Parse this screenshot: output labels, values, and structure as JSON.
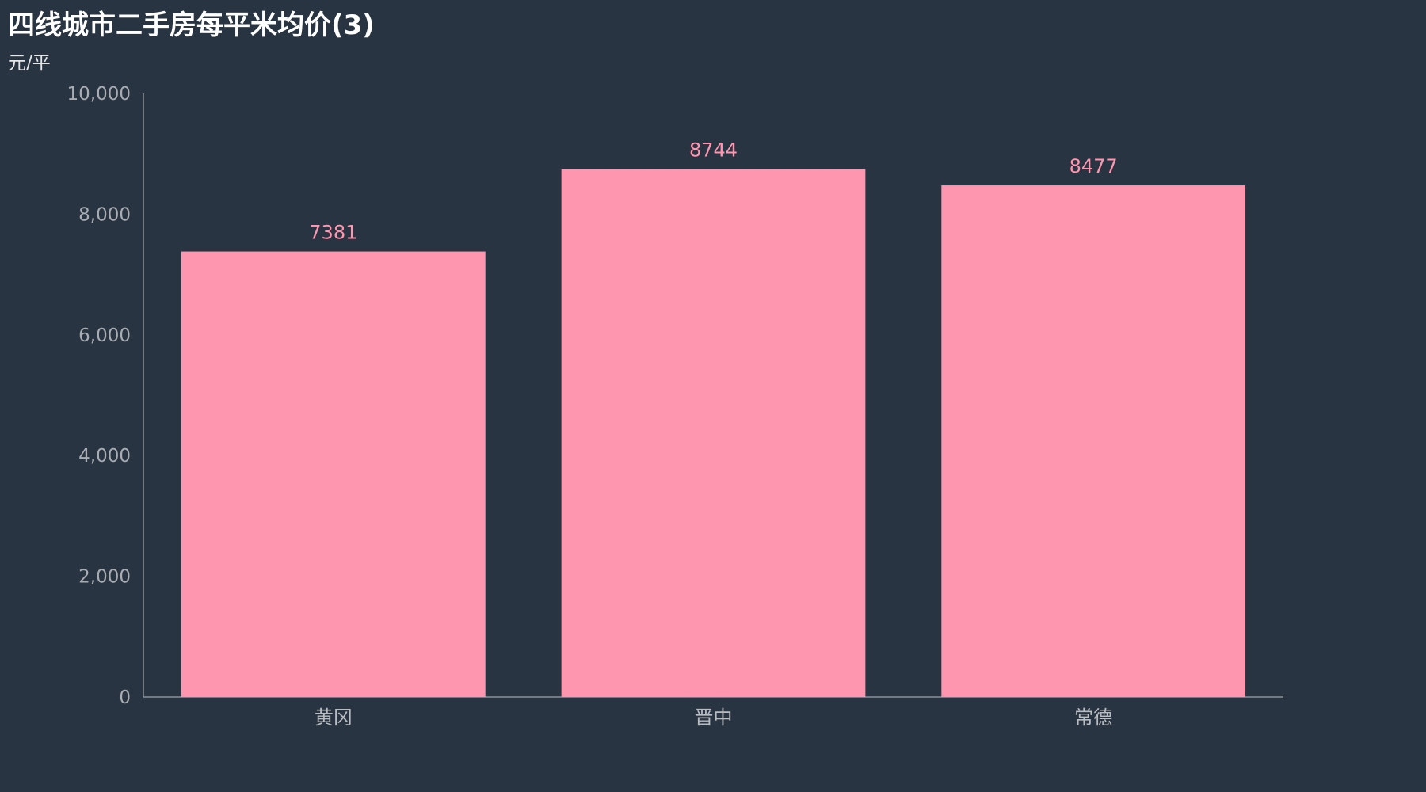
{
  "colors": {
    "background": "#283441",
    "bar": "#ff96b0",
    "axis": "#8a9099"
  },
  "chart_data": {
    "type": "bar",
    "title": "四线城市二手房每平米均价(3)",
    "unit_label": "元/平",
    "categories": [
      "黄冈",
      "晋中",
      "常德"
    ],
    "values": [
      7381,
      8744,
      8477
    ],
    "ylim": [
      0,
      10000
    ],
    "yticks": [
      0,
      2000,
      4000,
      6000,
      8000,
      10000
    ],
    "ytick_labels": [
      "0",
      "2,000",
      "4,000",
      "6,000",
      "8,000",
      "10,000"
    ],
    "data_labels": [
      "7381",
      "8744",
      "8477"
    ],
    "grid": false,
    "legend": "none"
  }
}
